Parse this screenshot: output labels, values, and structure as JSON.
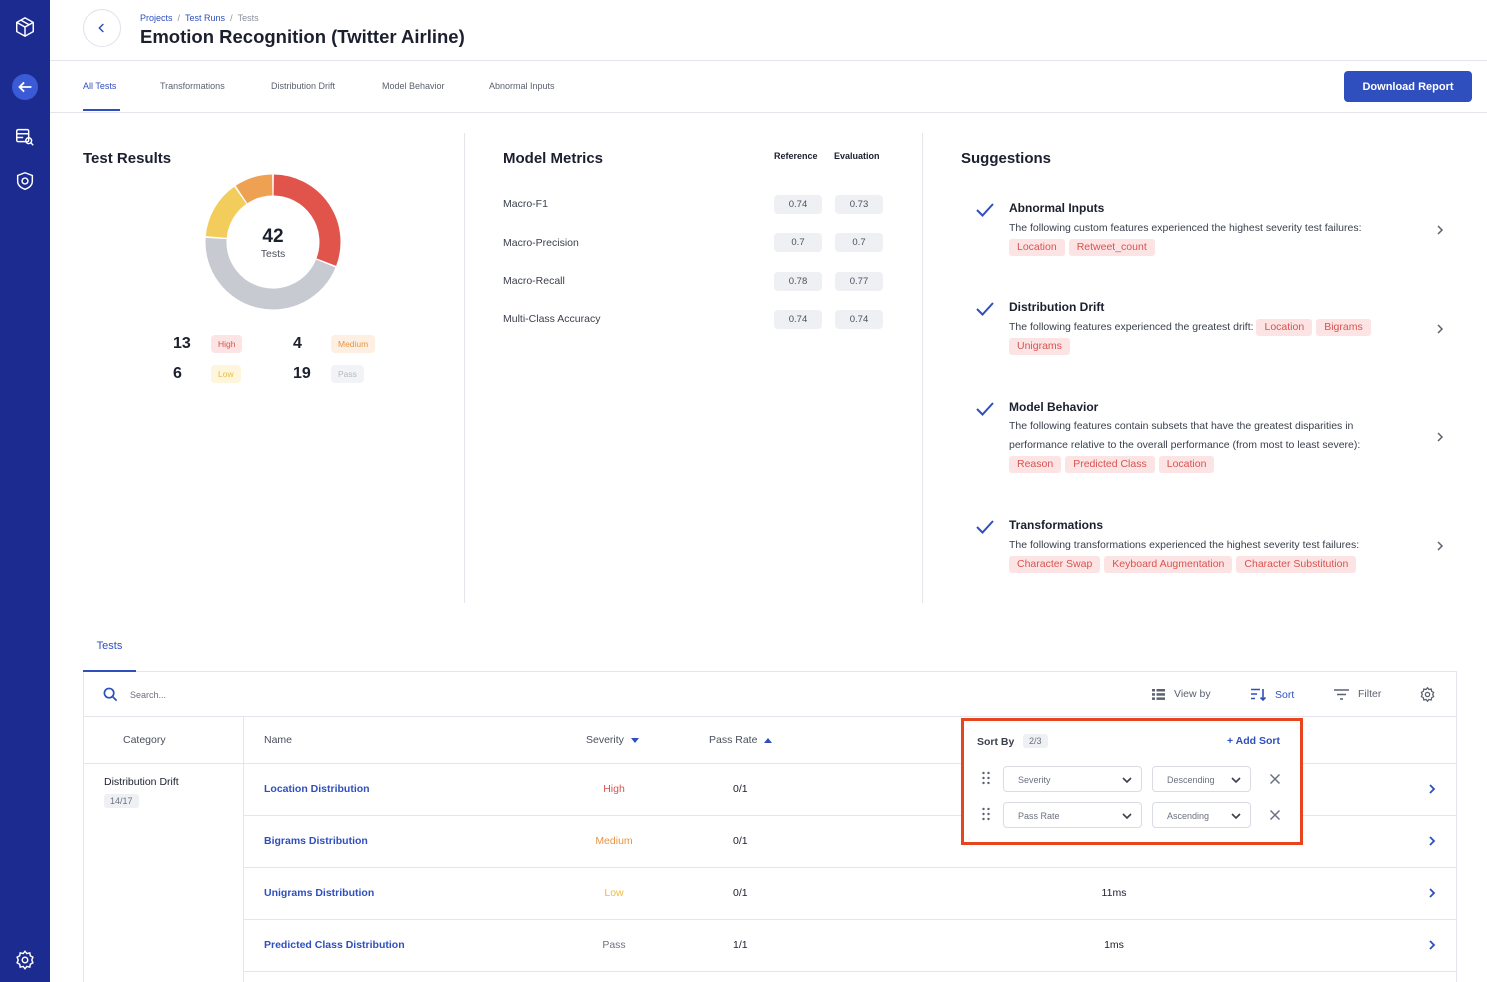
{
  "header": {
    "breadcrumbs": [
      "Projects",
      "Test Runs",
      "Tests"
    ],
    "separator": "/",
    "title": "Emotion Recognition (Twitter Airline)"
  },
  "tabs": [
    "All Tests",
    "Transformations",
    "Distribution Drift",
    "Model Behavior",
    "Abnormal Inputs"
  ],
  "download_label": "Download Report",
  "test_results": {
    "title": "Test Results",
    "total": "42",
    "total_label": "Tests",
    "stats": [
      {
        "count": "13",
        "label": "High"
      },
      {
        "count": "4",
        "label": "Medium"
      },
      {
        "count": "6",
        "label": "Low"
      },
      {
        "count": "19",
        "label": "Pass"
      }
    ],
    "colors": {
      "high": "#e0544b",
      "medium": "#eea152",
      "low": "#f2cd5c",
      "pass": "#c7cad0"
    }
  },
  "model_metrics": {
    "title": "Model Metrics",
    "reference_label": "Reference",
    "evaluation_label": "Evaluation",
    "rows": [
      {
        "name": "Macro-F1",
        "reference": "0.74",
        "evaluation": "0.73"
      },
      {
        "name": "Macro-Precision",
        "reference": "0.7",
        "evaluation": "0.7"
      },
      {
        "name": "Macro-Recall",
        "reference": "0.78",
        "evaluation": "0.77"
      },
      {
        "name": "Multi-Class Accuracy",
        "reference": "0.74",
        "evaluation": "0.74"
      }
    ]
  },
  "suggestions": {
    "title": "Suggestions",
    "items": [
      {
        "title": "Abnormal Inputs",
        "text": "The following custom features experienced the highest severity test failures:",
        "tags": [
          "Location",
          "Retweet_count"
        ]
      },
      {
        "title": "Distribution Drift",
        "text": "The following features experienced the greatest drift:",
        "tags": [
          "Location",
          "Bigrams",
          "Unigrams"
        ]
      },
      {
        "title": "Model Behavior",
        "text": "The following features contain subsets that have the greatest disparities in performance relative to the overall performance (from most to least severe):",
        "tags": [
          "Reason",
          "Predicted Class",
          "Location"
        ]
      },
      {
        "title": "Transformations",
        "text": "The following transformations experienced the highest severity test failures:",
        "tags": [
          "Character Swap",
          "Keyboard Augmentation",
          "Character Substitution"
        ]
      }
    ]
  },
  "tests_section": {
    "tab": "Tests",
    "search_placeholder": "Search...",
    "toolbar": {
      "view_by": "View by",
      "sort": "Sort",
      "filter": "Filter"
    },
    "columns": {
      "category": "Category",
      "name": "Name",
      "severity": "Severity",
      "pass_rate": "Pass Rate"
    },
    "category": {
      "name": "Distribution Drift",
      "count": "14/17"
    },
    "rows": [
      {
        "name": "Location Distribution",
        "severity": "High",
        "pass_rate": "0/1",
        "time": ""
      },
      {
        "name": "Bigrams Distribution",
        "severity": "Medium",
        "pass_rate": "0/1",
        "time": ""
      },
      {
        "name": "Unigrams Distribution",
        "severity": "Low",
        "pass_rate": "0/1",
        "time": "11ms"
      },
      {
        "name": "Predicted Class Distribution",
        "severity": "Pass",
        "pass_rate": "1/1",
        "time": "1ms"
      }
    ],
    "severity_colors": {
      "High": "#d9534f",
      "Medium": "#e8953e",
      "Low": "#eebc3a",
      "Pass": "#6c7180"
    }
  },
  "sort_popup": {
    "title": "Sort By",
    "count": "2/3",
    "add_label": "+ Add Sort",
    "rules": [
      {
        "field": "Severity",
        "order": "Descending"
      },
      {
        "field": "Pass Rate",
        "order": "Ascending"
      }
    ]
  }
}
